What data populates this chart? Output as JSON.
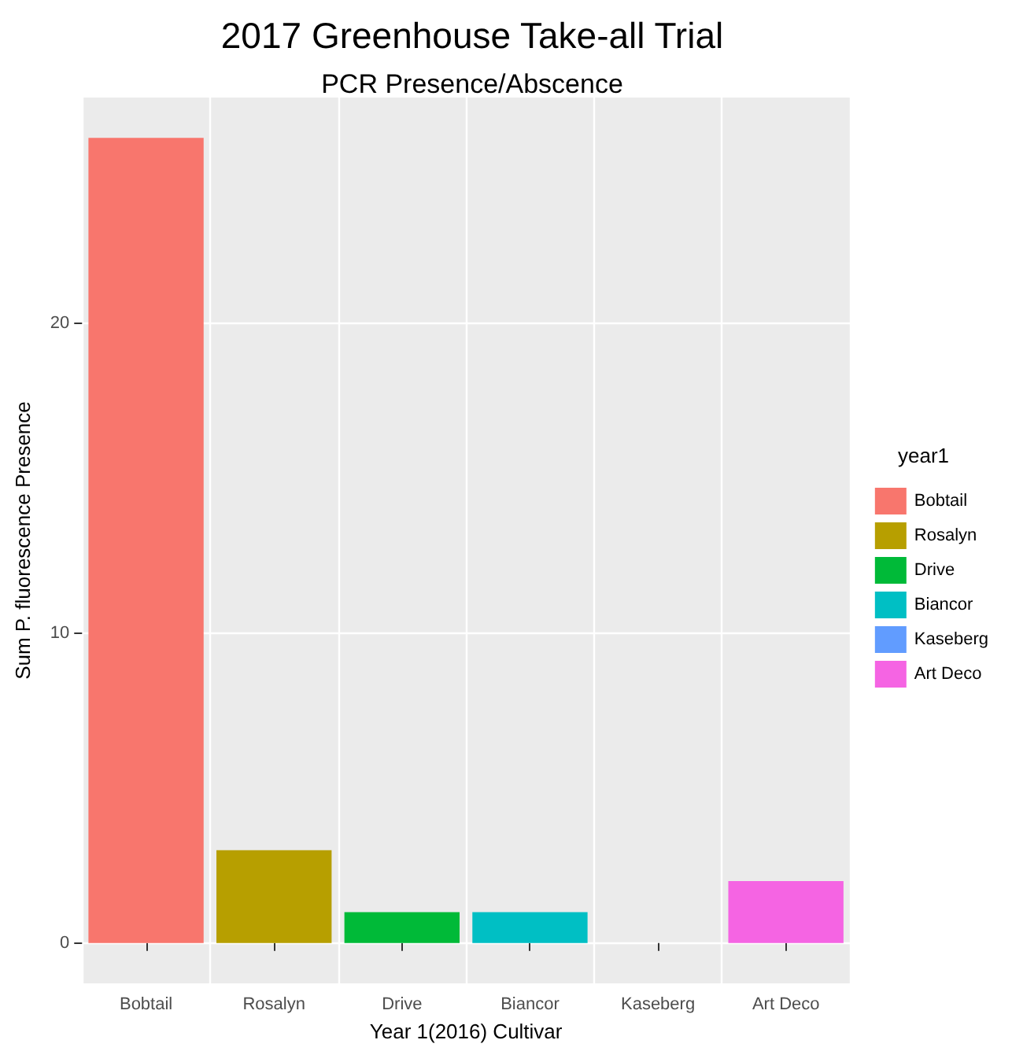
{
  "chart_data": {
    "type": "bar",
    "title": "2017 Greenhouse Take-all Trial",
    "subtitle": "PCR Presence/Abscence",
    "xlabel": "Year 1(2016) Cultivar",
    "ylabel": "Sum P. fluorescence Presence",
    "legend_title": "year1",
    "categories": [
      "Bobtail",
      "Rosalyn",
      "Drive",
      "Biancor",
      "Kaseberg",
      "Art Deco"
    ],
    "series": [
      {
        "name": "Bobtail",
        "color": "#f8766d",
        "values": [
          26,
          null,
          null,
          null,
          null,
          null
        ]
      },
      {
        "name": "Rosalyn",
        "color": "#b79f00",
        "values": [
          null,
          3,
          null,
          null,
          null,
          null
        ]
      },
      {
        "name": "Drive",
        "color": "#00ba38",
        "values": [
          null,
          null,
          1,
          null,
          null,
          null
        ]
      },
      {
        "name": "Biancor",
        "color": "#00bfc4",
        "values": [
          null,
          null,
          null,
          1,
          null,
          null
        ]
      },
      {
        "name": "Kaseberg",
        "color": "#619cff",
        "values": [
          null,
          null,
          null,
          null,
          0,
          null
        ]
      },
      {
        "name": "Art Deco",
        "color": "#f564e3",
        "values": [
          null,
          null,
          null,
          null,
          null,
          2
        ]
      }
    ],
    "ylim": [
      -1.3,
      27.3
    ],
    "yticks": [
      0,
      10,
      20
    ],
    "grid": true,
    "legend": "right"
  }
}
